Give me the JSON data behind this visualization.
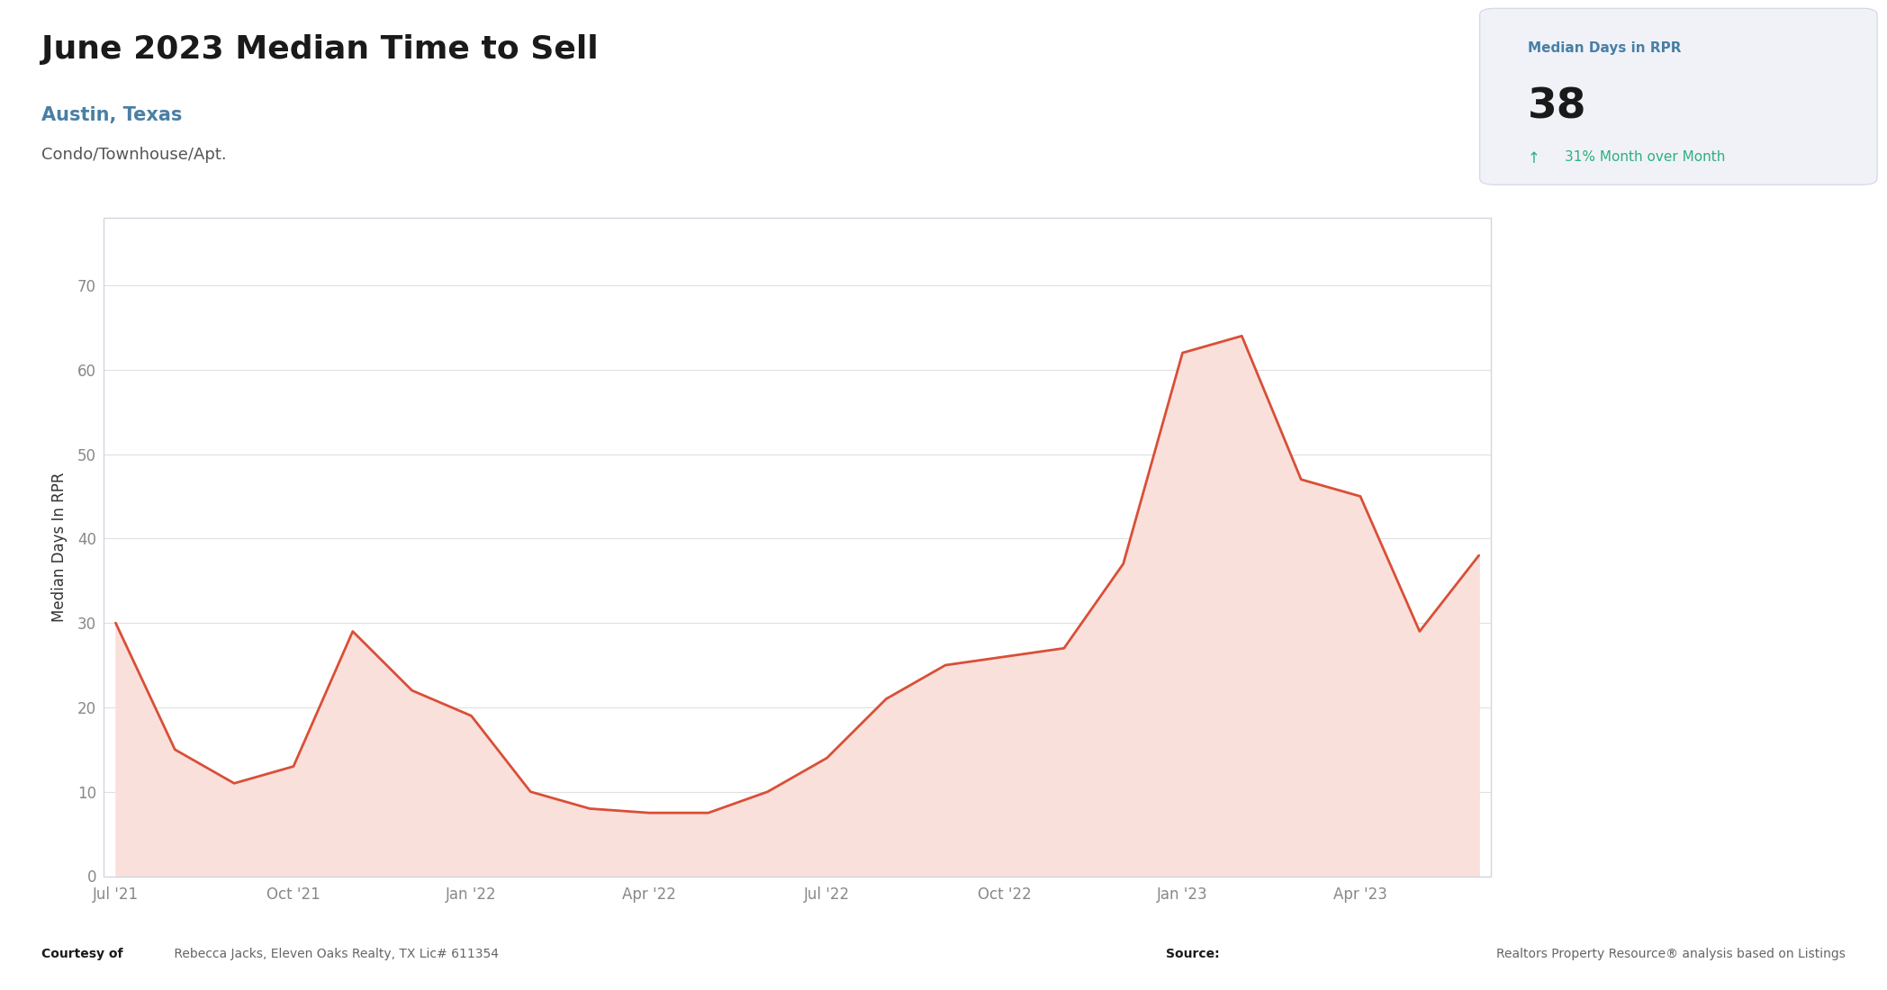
{
  "title": "June 2023 Median Time to Sell",
  "subtitle": "Austin, Texas",
  "subtitle2": "Condo/Townhouse/Apt.",
  "stat_label": "Median Days in RPR",
  "stat_value": "38",
  "stat_change": "31% Month over Month",
  "ylabel": "Median Days In RPR",
  "x_labels": [
    "Jul '21",
    "Oct '21",
    "Jan '22",
    "Apr '22",
    "Jul '22",
    "Oct '22",
    "Jan '23",
    "Apr '23"
  ],
  "y_ticks": [
    0,
    10,
    20,
    30,
    40,
    50,
    60,
    70
  ],
  "y_values": [
    30,
    15,
    11,
    13,
    29,
    22,
    19,
    10,
    8,
    7.5,
    7.5,
    10,
    14,
    21,
    25,
    26,
    27,
    37,
    62,
    64,
    47,
    45,
    29,
    38
  ],
  "line_color": "#d94f37",
  "fill_color": "#fae0db",
  "background_color": "#ffffff",
  "chart_bg": "#ffffff",
  "box_bg": "#f0f2f8",
  "title_color": "#1a1a1a",
  "subtitle_color": "#4a7fa5",
  "subtitle2_color": "#555555",
  "stat_label_color": "#4a7fa5",
  "stat_value_color": "#1a1a1a",
  "stat_change_color": "#2db07a",
  "grid_color": "#e0e0e0",
  "border_color": "#d0d5e0",
  "tick_color": "#888888",
  "ylabel_color": "#333333",
  "footer_bold_color": "#1a1a1a",
  "footer_normal_color": "#666666",
  "footer_blue_color": "#4a7fa5"
}
